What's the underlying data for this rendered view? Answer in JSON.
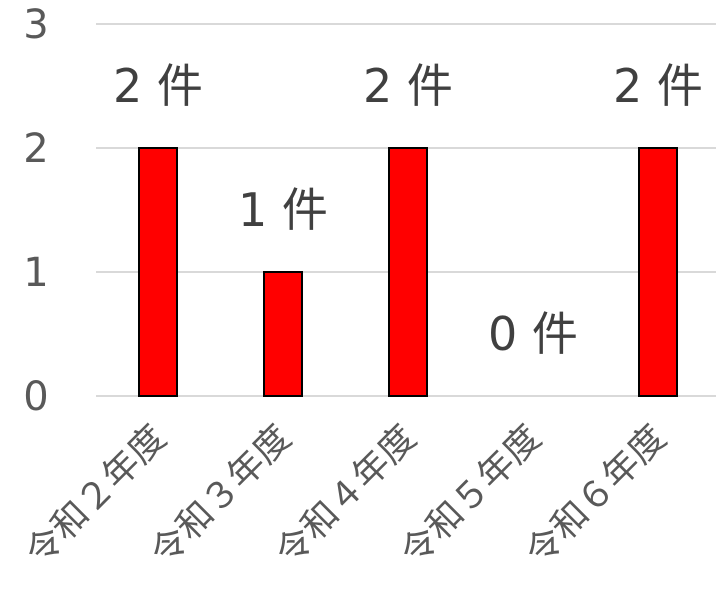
{
  "chart_data": {
    "type": "bar",
    "categories": [
      "令和２年度",
      "令和３年度",
      "令和４年度",
      "令和５年度",
      "令和６年度"
    ],
    "values": [
      2,
      1,
      2,
      0,
      2
    ],
    "data_labels": [
      "2 件",
      "1 件",
      "2 件",
      "0 件",
      "2 件"
    ],
    "y_ticks": [
      "0",
      "1",
      "2",
      "3"
    ],
    "ylim": [
      0,
      3
    ],
    "grid": true,
    "bar_color": "#ff0000",
    "bar_edge_color": "#000000",
    "title": "",
    "xlabel": "",
    "ylabel": ""
  }
}
